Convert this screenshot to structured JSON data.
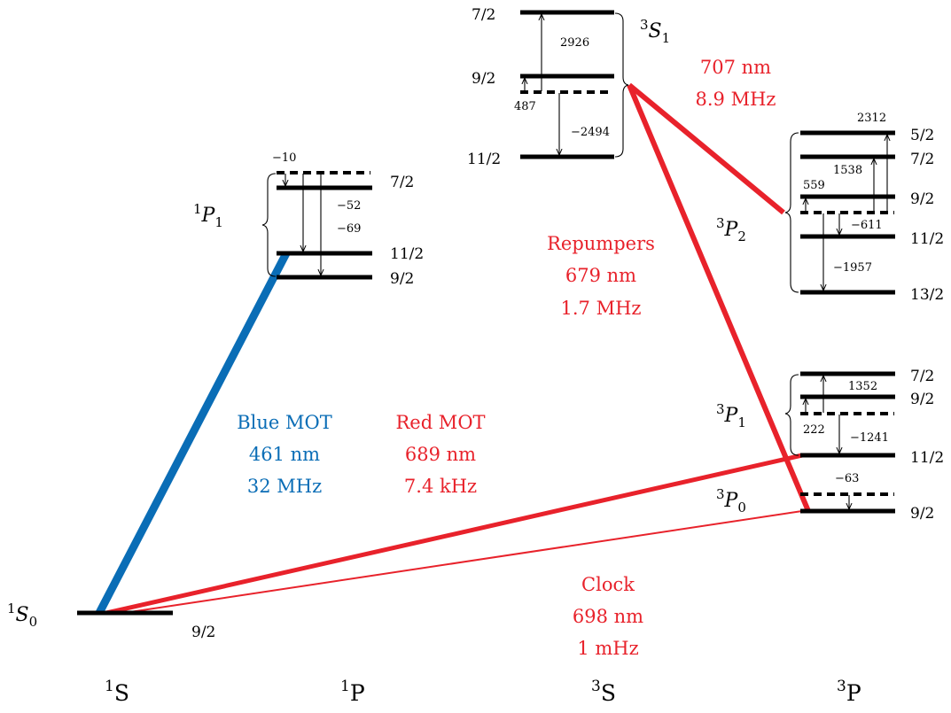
{
  "colors": {
    "blue": "#0a6db6",
    "red": "#e8222b",
    "black": "#000000"
  },
  "columns": [
    {
      "sup": "1",
      "base": "S"
    },
    {
      "sup": "1",
      "base": "P"
    },
    {
      "sup": "3",
      "base": "S"
    },
    {
      "sup": "3",
      "base": "P"
    }
  ],
  "terms": {
    "s0": {
      "sup": "1",
      "base": "S",
      "sub": "0"
    },
    "p1s": {
      "sup": "1",
      "base": "P",
      "sub": "1"
    },
    "s1t": {
      "sup": "3",
      "base": "S",
      "sub": "1"
    },
    "p2t": {
      "sup": "3",
      "base": "P",
      "sub": "2"
    },
    "p1t": {
      "sup": "3",
      "base": "P",
      "sub": "1"
    },
    "p0t": {
      "sup": "3",
      "base": "P",
      "sub": "0"
    }
  },
  "levels": {
    "s0": [
      "9/2"
    ],
    "p1s": [
      "7/2",
      "11/2",
      "9/2"
    ],
    "s1t": [
      "7/2",
      "9/2",
      "11/2"
    ],
    "p2t": [
      "5/2",
      "7/2",
      "9/2",
      "11/2",
      "13/2"
    ],
    "p1t": [
      "7/2",
      "9/2",
      "11/2"
    ],
    "p0t": [
      "9/2"
    ]
  },
  "shifts": {
    "p1s": [
      "−10",
      "−52",
      "−69"
    ],
    "s1t": [
      "2926",
      "487",
      "−2494"
    ],
    "p2t": [
      "2312",
      "1538",
      "559",
      "−611",
      "−1957"
    ],
    "p1t": [
      "1352",
      "222",
      "−1241"
    ],
    "p0t": [
      "−63"
    ]
  },
  "lasers": {
    "blue_mot": {
      "name": "Blue MOT",
      "wavelength": "461 nm",
      "linewidth": "32 MHz",
      "color": "#0a6db6"
    },
    "red_mot": {
      "name": "Red MOT",
      "wavelength": "689 nm",
      "linewidth": "7.4 kHz",
      "color": "#e8222b"
    },
    "repumpers": {
      "name": "Repumpers",
      "wavelength": "679 nm",
      "linewidth": "1.7 MHz",
      "color": "#e8222b"
    },
    "repump707": {
      "wavelength": "707 nm",
      "linewidth": "8.9 MHz",
      "color": "#e8222b"
    },
    "clock": {
      "name": "Clock",
      "wavelength": "698 nm",
      "linewidth": "1 mHz",
      "color": "#e8222b"
    }
  }
}
